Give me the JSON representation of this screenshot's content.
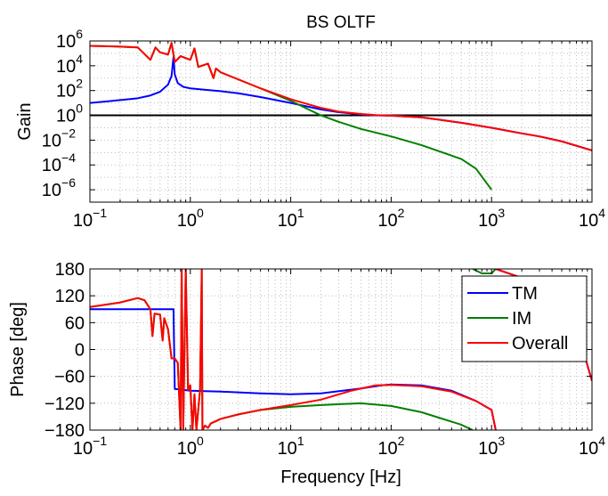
{
  "chart_data": [
    {
      "type": "line",
      "title": "BS OLTF",
      "xlabel": "",
      "ylabel": "Gain",
      "xscale": "log",
      "yscale": "log",
      "xlim": [
        0.1,
        10000
      ],
      "ylim": [
        1e-07,
        1000000.0
      ],
      "grid": true,
      "x_ticks": [
        {
          "value": 0.1,
          "base": "10",
          "exp": "−1"
        },
        {
          "value": 1,
          "base": "10",
          "exp": "0"
        },
        {
          "value": 10,
          "base": "10",
          "exp": "1"
        },
        {
          "value": 100,
          "base": "10",
          "exp": "2"
        },
        {
          "value": 1000,
          "base": "10",
          "exp": "3"
        },
        {
          "value": 10000,
          "base": "10",
          "exp": "4"
        }
      ],
      "y_ticks": [
        {
          "value": 1e-06,
          "base": "10",
          "exp": "−6"
        },
        {
          "value": 0.0001,
          "base": "10",
          "exp": "−4"
        },
        {
          "value": 0.01,
          "base": "10",
          "exp": "−2"
        },
        {
          "value": 1,
          "base": "10",
          "exp": "0"
        },
        {
          "value": 100.0,
          "base": "10",
          "exp": "2"
        },
        {
          "value": 10000.0,
          "base": "10",
          "exp": "4"
        },
        {
          "value": 1000000.0,
          "base": "10",
          "exp": "6"
        }
      ],
      "reference_line": {
        "y": 1,
        "color": "#000000"
      },
      "series": [
        {
          "color": "#0000ff",
          "points": [
            [
              0.1,
              10
            ],
            [
              0.2,
              17
            ],
            [
              0.3,
              24
            ],
            [
              0.4,
              40
            ],
            [
              0.5,
              80
            ],
            [
              0.6,
              300
            ],
            [
              0.65,
              1500
            ],
            [
              0.68,
              50000
            ],
            [
              0.7,
              2000
            ],
            [
              0.75,
              400
            ],
            [
              0.85,
              200
            ],
            [
              1,
              150
            ],
            [
              1.5,
              110
            ],
            [
              2,
              90
            ],
            [
              3,
              60
            ],
            [
              5,
              30
            ],
            [
              10,
              10
            ],
            [
              20,
              3
            ],
            [
              30,
              1.8
            ],
            [
              50,
              1.2
            ],
            [
              70,
              1
            ],
            [
              100,
              0.95
            ],
            [
              200,
              0.7
            ],
            [
              300,
              0.45
            ],
            [
              500,
              0.25
            ],
            [
              1000,
              0.1
            ],
            [
              2000,
              0.035
            ],
            [
              3000,
              0.02
            ],
            [
              5000,
              0.008
            ],
            [
              10000,
              0.0015
            ]
          ]
        },
        {
          "color": "#008000",
          "points": [
            [
              0.1,
              400000
            ],
            [
              0.2,
              350000
            ],
            [
              0.3,
              300000
            ],
            [
              0.4,
              30000
            ],
            [
              0.45,
              300000
            ],
            [
              0.5,
              120000
            ],
            [
              0.6,
              80000
            ],
            [
              0.65,
              700000
            ],
            [
              0.7,
              20000
            ],
            [
              0.8,
              60000
            ],
            [
              1,
              30000
            ],
            [
              1.1,
              250000
            ],
            [
              1.2,
              8000
            ],
            [
              1.5,
              15000
            ],
            [
              1.7,
              1000
            ],
            [
              1.8,
              6000
            ],
            [
              2,
              3000
            ],
            [
              3,
              800
            ],
            [
              5,
              150
            ],
            [
              10,
              15
            ],
            [
              15,
              3
            ],
            [
              20,
              1
            ],
            [
              30,
              0.3
            ],
            [
              50,
              0.08
            ],
            [
              100,
              0.02
            ],
            [
              200,
              0.004
            ],
            [
              500,
              0.0003
            ],
            [
              700,
              5e-05
            ],
            [
              1000,
              1e-06
            ]
          ]
        },
        {
          "color": "#ff0000",
          "points": [
            [
              0.1,
              400000
            ],
            [
              0.2,
              350000
            ],
            [
              0.3,
              300000
            ],
            [
              0.4,
              30000
            ],
            [
              0.45,
              300000
            ],
            [
              0.5,
              120000
            ],
            [
              0.6,
              80000
            ],
            [
              0.65,
              700000
            ],
            [
              0.7,
              20000
            ],
            [
              0.8,
              60000
            ],
            [
              1,
              30000
            ],
            [
              1.1,
              250000
            ],
            [
              1.2,
              8000
            ],
            [
              1.5,
              15000
            ],
            [
              1.7,
              1000
            ],
            [
              1.8,
              6000
            ],
            [
              2,
              3000
            ],
            [
              3,
              800
            ],
            [
              5,
              150
            ],
            [
              10,
              20
            ],
            [
              20,
              4
            ],
            [
              30,
              2
            ],
            [
              50,
              1.3
            ],
            [
              70,
              1.05
            ],
            [
              100,
              0.95
            ],
            [
              200,
              0.7
            ],
            [
              300,
              0.45
            ],
            [
              500,
              0.25
            ],
            [
              1000,
              0.1
            ],
            [
              2000,
              0.035
            ],
            [
              3000,
              0.02
            ],
            [
              5000,
              0.008
            ],
            [
              10000,
              0.0015
            ]
          ]
        }
      ]
    },
    {
      "type": "line",
      "title": "",
      "xlabel": "Frequency [Hz]",
      "ylabel": "Phase [deg]",
      "xscale": "log",
      "xlim": [
        0.1,
        10000
      ],
      "ylim": [
        -180,
        180
      ],
      "grid": true,
      "legend": "top-right",
      "x_ticks": [
        {
          "value": 0.1,
          "base": "10",
          "exp": "−1"
        },
        {
          "value": 1,
          "base": "10",
          "exp": "0"
        },
        {
          "value": 10,
          "base": "10",
          "exp": "1"
        },
        {
          "value": 100,
          "base": "10",
          "exp": "2"
        },
        {
          "value": 1000,
          "base": "10",
          "exp": "3"
        },
        {
          "value": 10000,
          "base": "10",
          "exp": "4"
        }
      ],
      "y_ticks": [
        {
          "value": -180,
          "label": "−180"
        },
        {
          "value": -120,
          "label": "−120"
        },
        {
          "value": -60,
          "label": "−60"
        },
        {
          "value": 0,
          "label": "0"
        },
        {
          "value": 60,
          "label": "60"
        },
        {
          "value": 120,
          "label": "120"
        },
        {
          "value": 180,
          "label": "180"
        }
      ],
      "series": [
        {
          "name": "TM",
          "color": "#0000ff",
          "points": [
            [
              0.1,
              90
            ],
            [
              0.3,
              90
            ],
            [
              0.68,
              90
            ],
            [
              0.7,
              -88
            ],
            [
              1,
              -92
            ],
            [
              2,
              -94
            ],
            [
              5,
              -98
            ],
            [
              10,
              -100
            ],
            [
              20,
              -98
            ],
            [
              50,
              -87
            ],
            [
              80,
              -80
            ],
            [
              100,
              -78
            ],
            [
              200,
              -80
            ],
            [
              400,
              -92
            ],
            [
              700,
              -115
            ],
            [
              1000,
              -135
            ],
            [
              1100,
              -180
            ],
            [
              1100,
              180
            ],
            [
              2000,
              160
            ],
            [
              5000,
              120
            ],
            [
              8000,
              5
            ],
            [
              10000,
              -70
            ]
          ]
        },
        {
          "name": "IM",
          "color": "#008000",
          "points": [
            [
              0.1,
              95
            ],
            [
              0.2,
              105
            ],
            [
              0.3,
              115
            ],
            [
              0.35,
              110
            ],
            [
              0.4,
              90
            ],
            [
              0.42,
              30
            ],
            [
              0.44,
              80
            ],
            [
              0.5,
              78
            ],
            [
              0.53,
              20
            ],
            [
              0.55,
              70
            ],
            [
              0.6,
              45
            ],
            [
              0.65,
              -20
            ],
            [
              0.7,
              -20
            ],
            [
              0.75,
              -30
            ],
            [
              0.8,
              -180
            ],
            [
              0.82,
              180
            ],
            [
              0.85,
              -180
            ],
            [
              0.9,
              180
            ],
            [
              0.95,
              -90
            ],
            [
              1.0,
              -80
            ],
            [
              1.05,
              -180
            ],
            [
              1.1,
              -100
            ],
            [
              1.15,
              -180
            ],
            [
              1.25,
              -90
            ],
            [
              1.3,
              180
            ],
            [
              1.32,
              -180
            ],
            [
              1.4,
              -170
            ],
            [
              1.5,
              -175
            ],
            [
              1.6,
              -165
            ],
            [
              1.8,
              -160
            ],
            [
              2,
              -155
            ],
            [
              3,
              -145
            ],
            [
              5,
              -135
            ],
            [
              10,
              -128
            ],
            [
              20,
              -124
            ],
            [
              50,
              -120
            ],
            [
              100,
              -126
            ],
            [
              200,
              -140
            ],
            [
              500,
              -168
            ],
            [
              650,
              -180
            ],
            [
              650,
              180
            ],
            [
              800,
              170
            ],
            [
              1000,
              170
            ],
            [
              1100,
              180
            ]
          ]
        },
        {
          "name": "Overall",
          "color": "#ff0000",
          "points": [
            [
              0.1,
              95
            ],
            [
              0.2,
              105
            ],
            [
              0.3,
              115
            ],
            [
              0.35,
              110
            ],
            [
              0.4,
              90
            ],
            [
              0.42,
              30
            ],
            [
              0.44,
              80
            ],
            [
              0.5,
              78
            ],
            [
              0.53,
              20
            ],
            [
              0.55,
              70
            ],
            [
              0.6,
              45
            ],
            [
              0.65,
              -20
            ],
            [
              0.7,
              -20
            ],
            [
              0.75,
              -30
            ],
            [
              0.8,
              -180
            ],
            [
              0.82,
              180
            ],
            [
              0.85,
              -180
            ],
            [
              0.9,
              180
            ],
            [
              0.95,
              -90
            ],
            [
              1.0,
              -80
            ],
            [
              1.05,
              -180
            ],
            [
              1.1,
              -100
            ],
            [
              1.15,
              -180
            ],
            [
              1.25,
              -90
            ],
            [
              1.3,
              180
            ],
            [
              1.32,
              -180
            ],
            [
              1.4,
              -170
            ],
            [
              1.5,
              -175
            ],
            [
              1.6,
              -165
            ],
            [
              1.8,
              -160
            ],
            [
              2,
              -155
            ],
            [
              3,
              -145
            ],
            [
              5,
              -135
            ],
            [
              10,
              -124
            ],
            [
              20,
              -112
            ],
            [
              40,
              -92
            ],
            [
              70,
              -80
            ],
            [
              100,
              -79
            ],
            [
              200,
              -82
            ],
            [
              400,
              -94
            ],
            [
              700,
              -115
            ],
            [
              1000,
              -135
            ],
            [
              1100,
              -180
            ],
            [
              1100,
              180
            ],
            [
              2000,
              160
            ],
            [
              5000,
              120
            ],
            [
              8000,
              5
            ],
            [
              10000,
              -70
            ]
          ]
        }
      ]
    }
  ]
}
